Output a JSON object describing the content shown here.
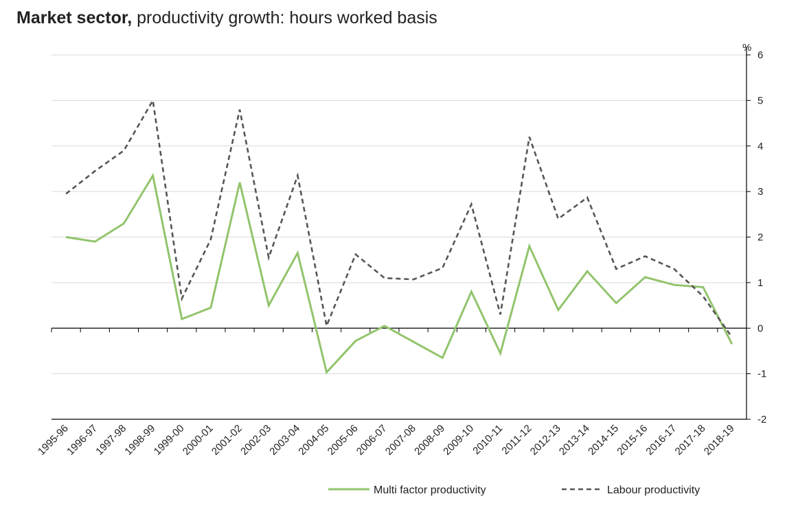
{
  "title_bold": "Market sector,",
  "title_rest": " productivity growth: hours worked basis",
  "chart_data": {
    "type": "line",
    "title": "Market sector, productivity growth: hours worked basis",
    "xlabel": "",
    "ylabel": "%",
    "ylim": [
      -2,
      6
    ],
    "yticks": [
      -2,
      -1,
      0,
      1,
      2,
      3,
      4,
      5,
      6
    ],
    "y_axis_side": "right",
    "grid": true,
    "legend_position": "bottom",
    "categories": [
      "1995-96",
      "1996-97",
      "1997-98",
      "1998-99",
      "1999-00",
      "2000-01",
      "2001-02",
      "2002-03",
      "2003-04",
      "2004-05",
      "2005-06",
      "2006-07",
      "2007-08",
      "2008-09",
      "2009-10",
      "2010-11",
      "2011-12",
      "2012-13",
      "2013-14",
      "2014-15",
      "2015-16",
      "2016-17",
      "2017-18",
      "2018-19"
    ],
    "series": [
      {
        "name": "Multi factor productivity",
        "color": "#92c46c",
        "dash": "solid",
        "values": [
          2.0,
          1.9,
          2.3,
          3.35,
          0.2,
          0.45,
          3.2,
          0.5,
          1.65,
          -0.97,
          -0.28,
          0.05,
          -0.3,
          -0.65,
          0.8,
          -0.55,
          1.8,
          0.4,
          1.25,
          0.55,
          1.12,
          0.95,
          0.9,
          -0.35
        ]
      },
      {
        "name": "Labour productivity",
        "color": "#555555",
        "dash": "dashed",
        "values": [
          2.95,
          3.45,
          3.9,
          5.0,
          0.65,
          1.95,
          4.8,
          1.55,
          3.35,
          0.05,
          1.62,
          1.1,
          1.07,
          1.32,
          2.72,
          0.3,
          4.2,
          2.4,
          2.87,
          1.3,
          1.58,
          1.3,
          0.7,
          -0.2
        ]
      }
    ]
  }
}
